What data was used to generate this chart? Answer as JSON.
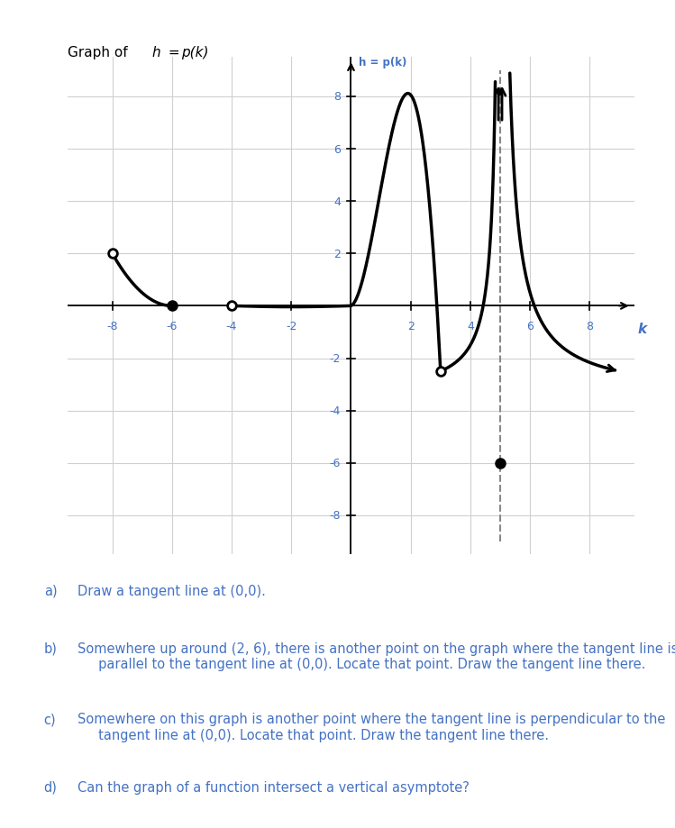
{
  "title_pre": "Graph of ",
  "title_h": "h",
  "title_eq": " = ",
  "title_pk": "p(k)",
  "ylabel": "h = p(k)",
  "xlabel": "k",
  "xlim": [
    -9.5,
    9.5
  ],
  "ylim": [
    -9.5,
    9.5
  ],
  "xtick_vals": [
    -8,
    -6,
    -4,
    -2,
    2,
    4,
    6,
    8
  ],
  "ytick_vals": [
    -8,
    -6,
    -4,
    -2,
    2,
    4,
    6,
    8
  ],
  "asymptote_x": 5.0,
  "open_circles": [
    [
      -8,
      2
    ],
    [
      -4,
      0
    ],
    [
      3,
      -2.5
    ]
  ],
  "filled_circles": [
    [
      -6,
      0
    ],
    [
      5,
      -6
    ]
  ],
  "curve_color": "#000000",
  "grid_color": "#d0d0d0",
  "tick_label_color": "#4472c4",
  "axis_label_color": "#4472c4",
  "title_color": "#000000",
  "question_color": "#4472c4",
  "bg_color": "#ffffff",
  "questions": [
    [
      "a)",
      "Draw a tangent line at (0,0)."
    ],
    [
      "b)",
      "Somewhere up around (2, 6), there is another point on the graph where the tangent line is\n     parallel to the tangent line at (0,0). Locate that point. Draw the tangent line there."
    ],
    [
      "c)",
      "Somewhere on this graph is another point where the tangent line is perpendicular to the\n     tangent line at (0,0). Locate that point. Draw the tangent line there."
    ],
    [
      "d)",
      "Can the graph of a function intersect a vertical asymptote?"
    ]
  ]
}
